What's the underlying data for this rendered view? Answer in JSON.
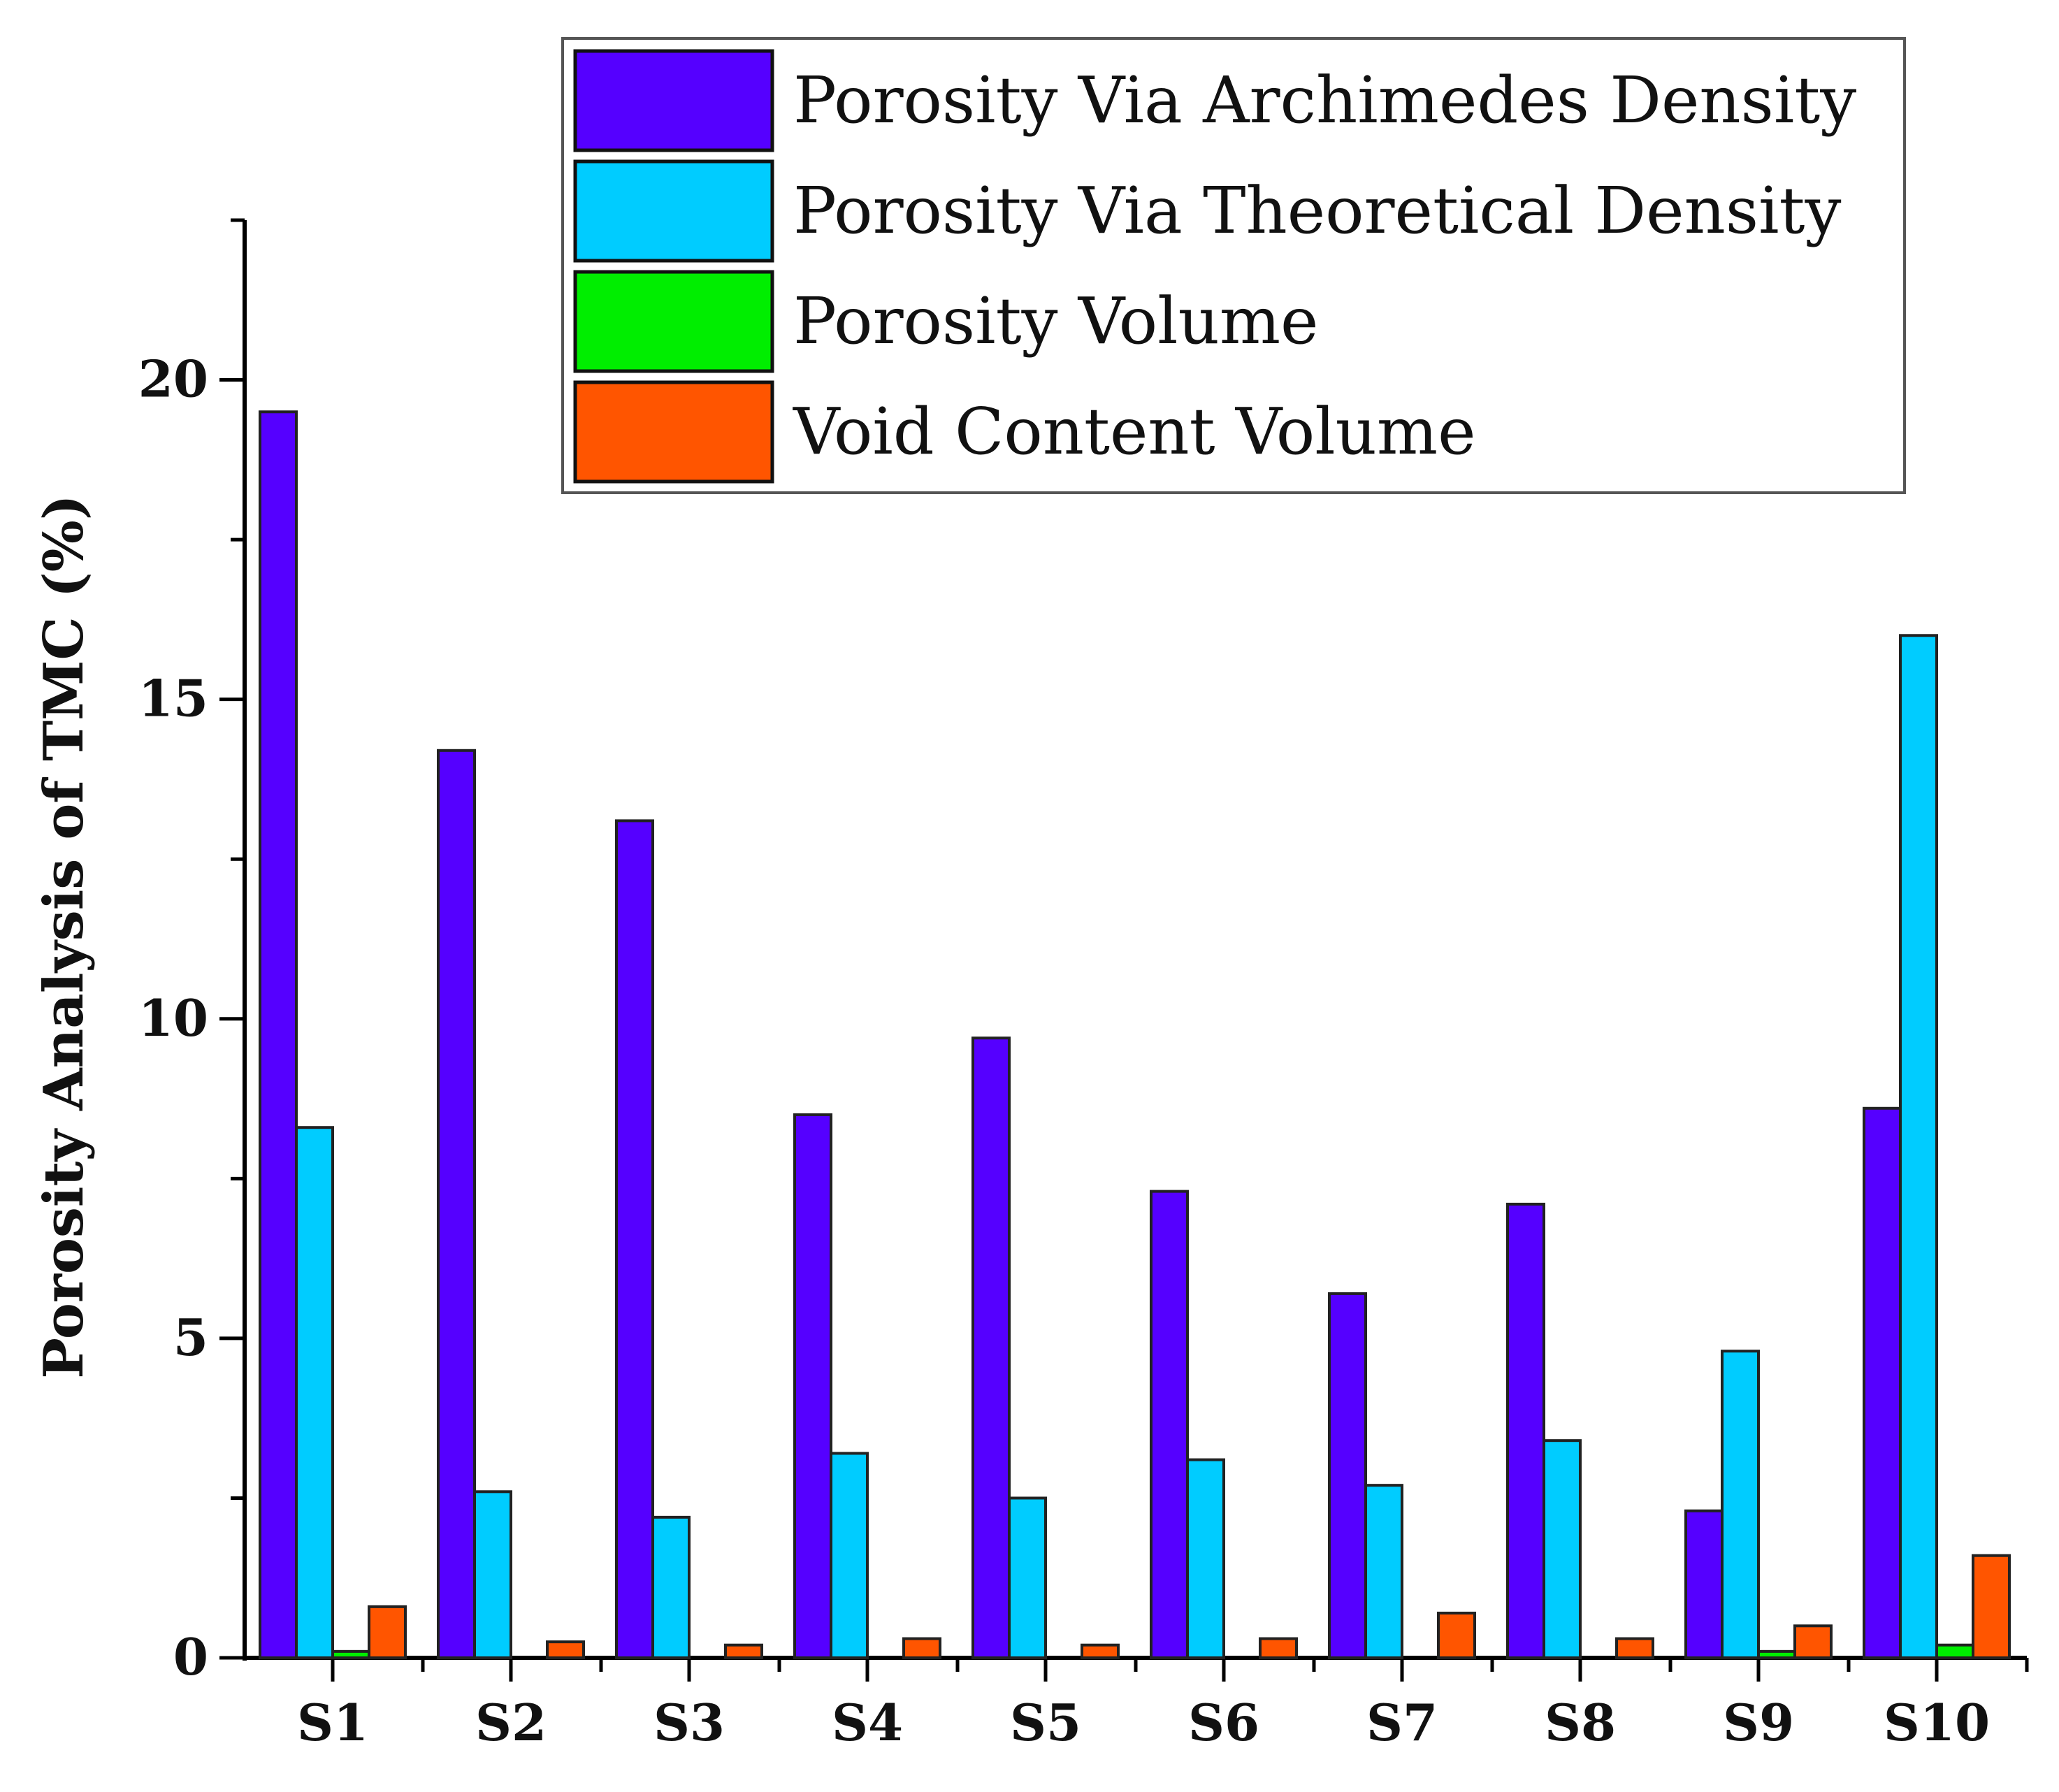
{
  "chart_data": {
    "type": "bar",
    "title": "",
    "xlabel": "",
    "ylabel": "Porosity Analysis of TMC (%)",
    "ylim": [
      0,
      22.5
    ],
    "yticks": [
      0,
      5,
      10,
      15,
      20
    ],
    "grid": false,
    "legend_position": "top-right",
    "categories": [
      "S1",
      "S2",
      "S3",
      "S4",
      "S5",
      "S6",
      "S7",
      "S8",
      "S9",
      "S10"
    ],
    "series": [
      {
        "name": "Porosity Via Archimedes Density",
        "color": "#5500ff",
        "values": [
          19.5,
          14.2,
          13.1,
          8.5,
          9.7,
          7.3,
          5.7,
          7.1,
          2.3,
          8.6
        ]
      },
      {
        "name": "Porosity Via Theoretical Density",
        "color": "#00ccff",
        "values": [
          8.3,
          2.6,
          2.2,
          3.2,
          2.5,
          3.1,
          2.7,
          3.4,
          4.8,
          16.0
        ]
      },
      {
        "name": "Porosity Volume",
        "color": "#00ee00",
        "values": [
          0.1,
          0.0,
          0.0,
          0.0,
          0.0,
          0.0,
          0.0,
          0.0,
          0.1,
          0.2
        ]
      },
      {
        "name": "Void Content Volume",
        "color": "#ff5500",
        "values": [
          0.8,
          0.25,
          0.2,
          0.3,
          0.2,
          0.3,
          0.7,
          0.3,
          0.5,
          1.6
        ]
      }
    ]
  }
}
